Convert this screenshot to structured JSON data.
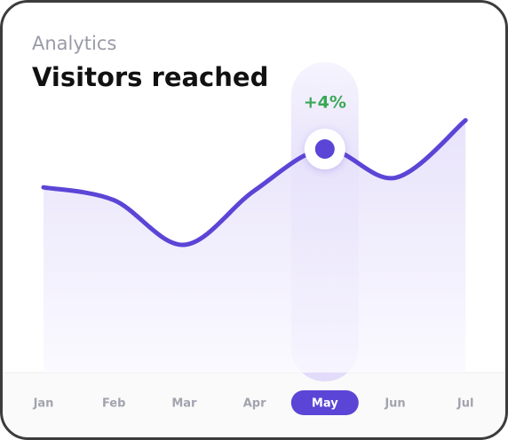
{
  "chart_data": {
    "type": "line",
    "subtitle": "Analytics",
    "title": "Visitors reached",
    "categories": [
      "Jan",
      "Feb",
      "Mar",
      "Apr",
      "May",
      "Jun",
      "Jul"
    ],
    "values": [
      58,
      54,
      40,
      57,
      70,
      61,
      79
    ],
    "ylim": [
      0,
      100
    ],
    "color": "#5b45d6",
    "highlight": "May",
    "annotation": "+4%"
  }
}
